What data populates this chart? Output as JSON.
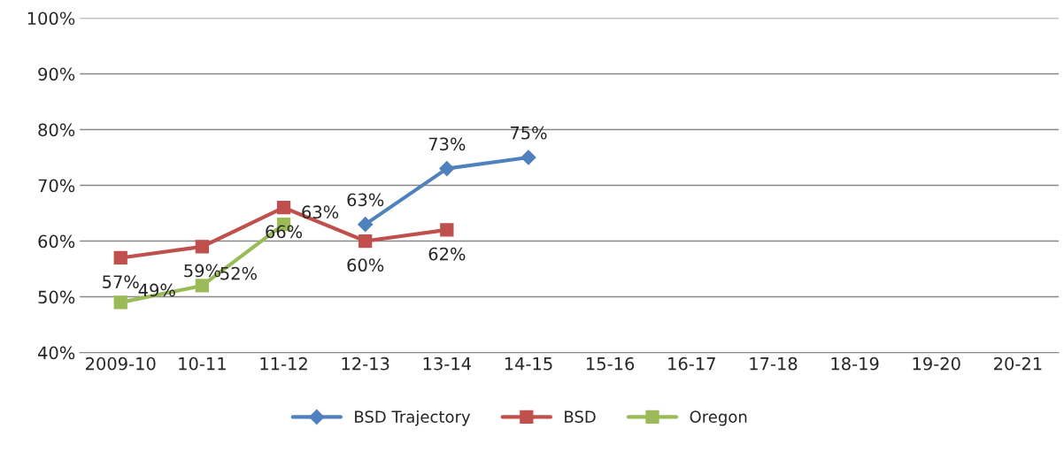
{
  "chart_data": {
    "type": "line",
    "categories": [
      "2009-10",
      "10-11",
      "11-12",
      "12-13",
      "13-14",
      "14-15",
      "15-16",
      "16-17",
      "17-18",
      "18-19",
      "19-20",
      "20-21"
    ],
    "series": [
      {
        "name": "BSD Trajectory",
        "color": "#4f81bd",
        "marker": "diamond",
        "values": [
          null,
          null,
          null,
          63,
          73,
          75,
          null,
          null,
          null,
          null,
          null,
          null
        ],
        "value_labels": [
          null,
          null,
          null,
          "63%",
          "73%",
          "75%",
          null,
          null,
          null,
          null,
          null,
          null
        ]
      },
      {
        "name": "BSD",
        "color": "#c0504d",
        "marker": "square",
        "values": [
          57,
          59,
          66,
          60,
          62,
          null,
          null,
          null,
          null,
          null,
          null,
          null
        ],
        "value_labels": [
          "57%",
          "59%",
          "66%",
          "60%",
          "62%",
          null,
          null,
          null,
          null,
          null,
          null,
          null
        ]
      },
      {
        "name": "Oregon",
        "color": "#9bbb59",
        "marker": "square",
        "values": [
          49,
          52,
          63,
          null,
          null,
          null,
          null,
          null,
          null,
          null,
          null,
          null
        ],
        "value_labels": [
          "49%",
          "52%",
          "63%",
          null,
          null,
          null,
          null,
          null,
          null,
          null,
          null,
          null
        ]
      }
    ],
    "ylim": [
      40,
      100
    ],
    "yticks": [
      {
        "value": 40,
        "label": "40%"
      },
      {
        "value": 50,
        "label": "50%"
      },
      {
        "value": 60,
        "label": "60%"
      },
      {
        "value": 70,
        "label": "70%"
      },
      {
        "value": 80,
        "label": "80%"
      },
      {
        "value": 90,
        "label": "90%"
      },
      {
        "value": 100,
        "label": "100%"
      }
    ],
    "grid": "y",
    "legend": "bottom",
    "line_style": "solid"
  }
}
